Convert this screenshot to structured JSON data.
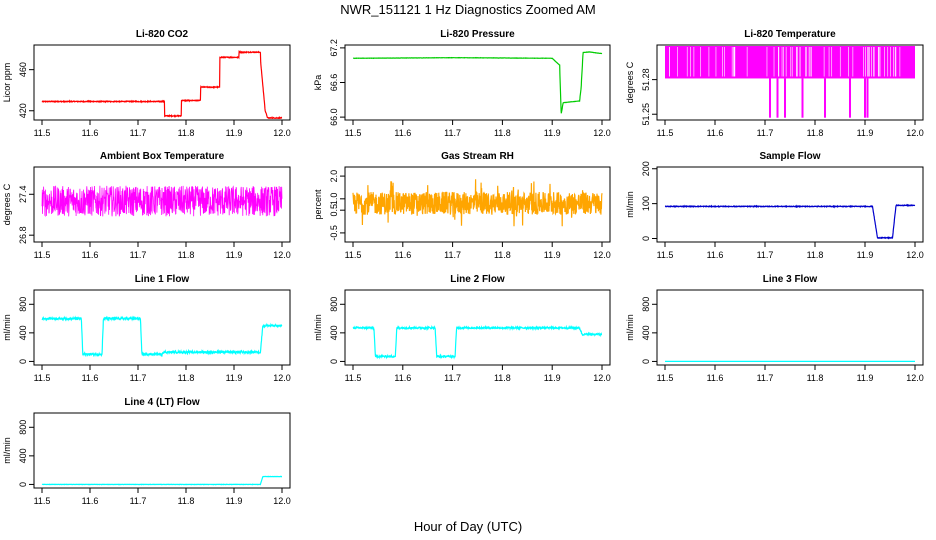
{
  "title": "NWR_151121  1 Hz Diagnostics Zoomed AM",
  "xlabel": "Hour of Day (UTC)",
  "chart_data": [
    {
      "type": "line",
      "title": "Li-820 CO2",
      "ylabel": "Licor ppm",
      "color": "#ff0000",
      "xlim": [
        11.5,
        12.0
      ],
      "ylim": [
        411,
        484
      ],
      "yticks": [
        420,
        460
      ],
      "xticks": [
        "11.5",
        "11.6",
        "11.7",
        "11.8",
        "11.9",
        "12.0"
      ],
      "segments": [
        [
          11.5,
          429
        ],
        [
          11.755,
          429
        ],
        [
          11.755,
          415
        ],
        [
          11.79,
          415
        ],
        [
          11.79,
          430
        ],
        [
          11.83,
          430
        ],
        [
          11.83,
          443
        ],
        [
          11.87,
          443
        ],
        [
          11.87,
          472
        ],
        [
          11.91,
          472
        ],
        [
          11.91,
          477
        ],
        [
          11.955,
          477
        ],
        [
          11.955,
          470
        ],
        [
          11.965,
          420
        ],
        [
          11.97,
          413
        ],
        [
          12.0,
          413
        ]
      ],
      "noise": 0.8
    },
    {
      "type": "line",
      "title": "Li-820 Pressure",
      "ylabel": "kPa",
      "color": "#00cc00",
      "xlim": [
        11.5,
        12.0
      ],
      "ylim": [
        65.95,
        67.25
      ],
      "yticks": [
        66.0,
        66.6,
        67.2
      ],
      "ytick_labels": [
        "66.0",
        "66.6",
        "67.2"
      ],
      "xticks": [
        "11.5",
        "11.6",
        "11.7",
        "11.8",
        "11.9",
        "12.0"
      ],
      "segments": [
        [
          11.5,
          67.02
        ],
        [
          11.7,
          67.03
        ],
        [
          11.9,
          67.02
        ],
        [
          11.915,
          66.9
        ],
        [
          11.918,
          66.05
        ],
        [
          11.922,
          66.25
        ],
        [
          11.955,
          66.28
        ],
        [
          11.958,
          66.5
        ],
        [
          11.962,
          67.12
        ],
        [
          11.975,
          67.13
        ],
        [
          12.0,
          67.1
        ]
      ],
      "noise": 0.004
    },
    {
      "type": "line",
      "title": "Li-820 Temperature",
      "ylabel": "degrees C",
      "color": "#ff00ff",
      "xlim": [
        11.5,
        12.0
      ],
      "ylim": [
        51.245,
        51.31
      ],
      "yticks": [
        51.25,
        51.28
      ],
      "ytick_labels": [
        "51.25",
        "51.28"
      ],
      "xticks": [
        "11.5",
        "11.6",
        "11.7",
        "11.8",
        "11.9",
        "12.0"
      ],
      "mode": "bands",
      "low": 51.281,
      "high": 51.31,
      "dips": [
        11.71,
        11.725,
        11.74,
        11.775,
        11.82,
        11.87,
        11.9,
        11.905
      ],
      "dip_value": 51.247
    },
    {
      "type": "line",
      "title": "Ambient Box Temperature",
      "ylabel": "degrees C",
      "color": "#ff00ff",
      "xlim": [
        11.5,
        12.0
      ],
      "ylim": [
        26.7,
        27.8
      ],
      "yticks": [
        26.8,
        27.4
      ],
      "ytick_labels": [
        "26.8",
        "27.4"
      ],
      "xticks": [
        "11.5",
        "11.6",
        "11.7",
        "11.8",
        "11.9",
        "12.0"
      ],
      "segments": [
        [
          11.5,
          27.3
        ],
        [
          12.0,
          27.3
        ]
      ],
      "noise": 0.45
    },
    {
      "type": "line",
      "title": "Gas Stream RH",
      "ylabel": "percent",
      "color": "#ffa500",
      "xlim": [
        11.5,
        12.0
      ],
      "ylim": [
        -0.9,
        2.4
      ],
      "yticks": [
        -0.5,
        0.5,
        1.0,
        2.0
      ],
      "ytick_labels": [
        "-0.5",
        "0.5",
        "1.0",
        "2.0"
      ],
      "xticks": [
        "11.5",
        "11.6",
        "11.7",
        "11.8",
        "11.9",
        "12.0"
      ],
      "segments": [
        [
          11.5,
          0.8
        ],
        [
          12.0,
          0.8
        ]
      ],
      "noise": 1.0,
      "points": true
    },
    {
      "type": "line",
      "title": "Sample Flow",
      "ylabel": "ml/min",
      "color": "#0000cc",
      "xlim": [
        11.5,
        12.0
      ],
      "ylim": [
        -10,
        205
      ],
      "yticks": [
        0,
        100,
        200
      ],
      "xticks": [
        "11.5",
        "11.6",
        "11.7",
        "11.8",
        "11.9",
        "12.0"
      ],
      "segments": [
        [
          11.5,
          92
        ],
        [
          11.915,
          92
        ],
        [
          11.925,
          2
        ],
        [
          11.955,
          2
        ],
        [
          11.962,
          95
        ],
        [
          12.0,
          95
        ]
      ],
      "noise": 2
    },
    {
      "type": "line",
      "title": "Line 1 Flow",
      "ylabel": "ml/min",
      "color": "#00ffff",
      "xlim": [
        11.5,
        12.0
      ],
      "ylim": [
        -50,
        1000
      ],
      "yticks": [
        0,
        400,
        800
      ],
      "xticks": [
        "11.5",
        "11.6",
        "11.7",
        "11.8",
        "11.9",
        "12.0"
      ],
      "segments": [
        [
          11.5,
          600
        ],
        [
          11.582,
          600
        ],
        [
          11.585,
          100
        ],
        [
          11.625,
          100
        ],
        [
          11.628,
          600
        ],
        [
          11.705,
          600
        ],
        [
          11.708,
          100
        ],
        [
          11.75,
          100
        ],
        [
          11.752,
          130
        ],
        [
          11.955,
          130
        ],
        [
          11.96,
          500
        ],
        [
          12.0,
          500
        ]
      ],
      "noise": 30
    },
    {
      "type": "line",
      "title": "Line 2 Flow",
      "ylabel": "ml/min",
      "color": "#00ffff",
      "xlim": [
        11.5,
        12.0
      ],
      "ylim": [
        -50,
        1000
      ],
      "yticks": [
        0,
        400,
        800
      ],
      "xticks": [
        "11.5",
        "11.6",
        "11.7",
        "11.8",
        "11.9",
        "12.0"
      ],
      "segments": [
        [
          11.5,
          470
        ],
        [
          11.542,
          470
        ],
        [
          11.545,
          70
        ],
        [
          11.585,
          70
        ],
        [
          11.588,
          470
        ],
        [
          11.665,
          470
        ],
        [
          11.668,
          70
        ],
        [
          11.705,
          70
        ],
        [
          11.708,
          470
        ],
        [
          11.955,
          470
        ],
        [
          11.96,
          380
        ],
        [
          12.0,
          380
        ]
      ],
      "noise": 25
    },
    {
      "type": "line",
      "title": "Line 3 Flow",
      "ylabel": "ml/min",
      "color": "#00ffff",
      "xlim": [
        11.5,
        12.0
      ],
      "ylim": [
        -50,
        1000
      ],
      "yticks": [
        0,
        400,
        800
      ],
      "xticks": [
        "11.5",
        "11.6",
        "11.7",
        "11.8",
        "11.9",
        "12.0"
      ],
      "segments": [
        [
          11.5,
          0
        ],
        [
          12.0,
          0
        ]
      ],
      "noise": 0
    },
    {
      "type": "line",
      "title": "Line 4 (LT) Flow",
      "ylabel": "ml/min",
      "color": "#00ffff",
      "xlim": [
        11.5,
        12.0
      ],
      "ylim": [
        -50,
        1000
      ],
      "yticks": [
        0,
        400,
        800
      ],
      "xticks": [
        "11.5",
        "11.6",
        "11.7",
        "11.8",
        "11.9",
        "12.0"
      ],
      "segments": [
        [
          11.5,
          0
        ],
        [
          11.955,
          0
        ],
        [
          11.96,
          110
        ],
        [
          12.0,
          110
        ]
      ],
      "noise": 4
    }
  ]
}
